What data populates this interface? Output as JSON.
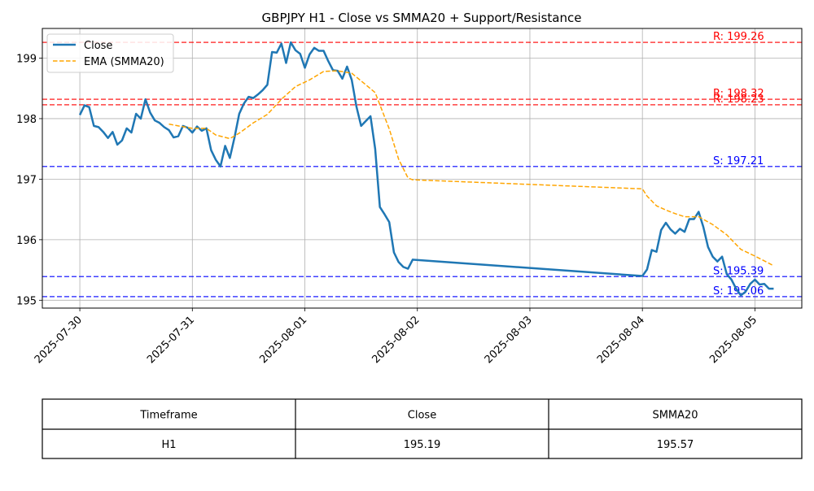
{
  "chart_data": {
    "type": "line",
    "title": "GBPJPY H1 - Close vs SMMA20 + Support/Resistance",
    "xlabel": "",
    "ylabel": "",
    "x_ticks": [
      "2025-07-30",
      "2025-07-31",
      "2025-08-01",
      "2025-08-02",
      "2025-08-03",
      "2025-08-04",
      "2025-08-05"
    ],
    "y_ticks": [
      "195",
      "196",
      "197",
      "198",
      "199"
    ],
    "ylim": [
      194.87,
      199.49
    ],
    "xlim": [
      "2025-07-29T16:00",
      "2025-08-05T10:00"
    ],
    "grid": true,
    "legend_position": "upper-left",
    "series": [
      {
        "name": "Close",
        "color": "#1f77b4",
        "style": "solid",
        "points": [
          [
            "2025-07-30T00:00",
            198.06
          ],
          [
            "2025-07-30T01:00",
            198.22
          ],
          [
            "2025-07-30T02:00",
            198.19
          ],
          [
            "2025-07-30T03:00",
            197.88
          ],
          [
            "2025-07-30T04:00",
            197.86
          ],
          [
            "2025-07-30T05:00",
            197.78
          ],
          [
            "2025-07-30T06:00",
            197.68
          ],
          [
            "2025-07-30T07:00",
            197.78
          ],
          [
            "2025-07-30T08:00",
            197.57
          ],
          [
            "2025-07-30T09:00",
            197.64
          ],
          [
            "2025-07-30T10:00",
            197.84
          ],
          [
            "2025-07-30T11:00",
            197.77
          ],
          [
            "2025-07-30T12:00",
            198.08
          ],
          [
            "2025-07-30T13:00",
            198.0
          ],
          [
            "2025-07-30T14:00",
            198.32
          ],
          [
            "2025-07-30T15:00",
            198.1
          ],
          [
            "2025-07-30T16:00",
            197.97
          ],
          [
            "2025-07-30T17:00",
            197.93
          ],
          [
            "2025-07-30T18:00",
            197.86
          ],
          [
            "2025-07-30T19:00",
            197.81
          ],
          [
            "2025-07-30T20:00",
            197.69
          ],
          [
            "2025-07-30T21:00",
            197.71
          ],
          [
            "2025-07-30T22:00",
            197.88
          ],
          [
            "2025-07-30T23:00",
            197.85
          ],
          [
            "2025-07-31T00:00",
            197.77
          ],
          [
            "2025-07-31T01:00",
            197.87
          ],
          [
            "2025-07-31T02:00",
            197.8
          ],
          [
            "2025-07-31T03:00",
            197.84
          ],
          [
            "2025-07-31T04:00",
            197.48
          ],
          [
            "2025-07-31T05:00",
            197.32
          ],
          [
            "2025-07-31T06:00",
            197.21
          ],
          [
            "2025-07-31T07:00",
            197.55
          ],
          [
            "2025-07-31T08:00",
            197.35
          ],
          [
            "2025-07-31T09:00",
            197.69
          ],
          [
            "2025-07-31T10:00",
            198.08
          ],
          [
            "2025-07-31T11:00",
            198.25
          ],
          [
            "2025-07-31T12:00",
            198.36
          ],
          [
            "2025-07-31T13:00",
            198.34
          ],
          [
            "2025-07-31T14:00",
            198.4
          ],
          [
            "2025-07-31T15:00",
            198.47
          ],
          [
            "2025-07-31T16:00",
            198.56
          ],
          [
            "2025-07-31T17:00",
            199.1
          ],
          [
            "2025-07-31T18:00",
            199.09
          ],
          [
            "2025-07-31T19:00",
            199.24
          ],
          [
            "2025-07-31T20:00",
            198.92
          ],
          [
            "2025-07-31T21:00",
            199.26
          ],
          [
            "2025-07-31T22:00",
            199.13
          ],
          [
            "2025-07-31T23:00",
            199.07
          ],
          [
            "2025-08-01T00:00",
            198.84
          ],
          [
            "2025-08-01T01:00",
            199.06
          ],
          [
            "2025-08-01T02:00",
            199.17
          ],
          [
            "2025-08-01T03:00",
            199.12
          ],
          [
            "2025-08-01T04:00",
            199.12
          ],
          [
            "2025-08-01T05:00",
            198.95
          ],
          [
            "2025-08-01T06:00",
            198.8
          ],
          [
            "2025-08-01T07:00",
            198.79
          ],
          [
            "2025-08-01T08:00",
            198.66
          ],
          [
            "2025-08-01T09:00",
            198.86
          ],
          [
            "2025-08-01T10:00",
            198.64
          ],
          [
            "2025-08-01T11:00",
            198.2
          ],
          [
            "2025-08-01T12:00",
            197.88
          ],
          [
            "2025-08-01T13:00",
            197.96
          ],
          [
            "2025-08-01T14:00",
            198.04
          ],
          [
            "2025-08-01T15:00",
            197.5
          ],
          [
            "2025-08-01T16:00",
            196.54
          ],
          [
            "2025-08-01T17:00",
            196.42
          ],
          [
            "2025-08-01T18:00",
            196.29
          ],
          [
            "2025-08-01T19:00",
            195.79
          ],
          [
            "2025-08-01T20:00",
            195.63
          ],
          [
            "2025-08-01T21:00",
            195.55
          ],
          [
            "2025-08-01T22:00",
            195.52
          ],
          [
            "2025-08-01T23:00",
            195.67
          ],
          [
            "2025-08-04T00:00",
            195.4
          ],
          [
            "2025-08-04T01:00",
            195.51
          ],
          [
            "2025-08-04T02:00",
            195.83
          ],
          [
            "2025-08-04T03:00",
            195.8
          ],
          [
            "2025-08-04T04:00",
            196.16
          ],
          [
            "2025-08-04T05:00",
            196.28
          ],
          [
            "2025-08-04T06:00",
            196.17
          ],
          [
            "2025-08-04T07:00",
            196.1
          ],
          [
            "2025-08-04T08:00",
            196.18
          ],
          [
            "2025-08-04T09:00",
            196.13
          ],
          [
            "2025-08-04T10:00",
            196.34
          ],
          [
            "2025-08-04T11:00",
            196.34
          ],
          [
            "2025-08-04T12:00",
            196.46
          ],
          [
            "2025-08-04T13:00",
            196.21
          ],
          [
            "2025-08-04T14:00",
            195.88
          ],
          [
            "2025-08-04T15:00",
            195.72
          ],
          [
            "2025-08-04T16:00",
            195.64
          ],
          [
            "2025-08-04T17:00",
            195.72
          ],
          [
            "2025-08-04T18:00",
            195.43
          ],
          [
            "2025-08-04T19:00",
            195.34
          ],
          [
            "2025-08-04T20:00",
            195.19
          ],
          [
            "2025-08-04T21:00",
            195.08
          ],
          [
            "2025-08-04T22:00",
            195.14
          ],
          [
            "2025-08-04T23:00",
            195.27
          ],
          [
            "2025-08-05T00:00",
            195.34
          ],
          [
            "2025-08-05T01:00",
            195.26
          ],
          [
            "2025-08-05T02:00",
            195.27
          ],
          [
            "2025-08-05T03:00",
            195.19
          ],
          [
            "2025-08-05T04:00",
            195.19
          ]
        ]
      },
      {
        "name": "EMA (SMMA20)",
        "color": "#ffa500",
        "style": "dashed",
        "points": [
          [
            "2025-07-30T19:00",
            197.91
          ],
          [
            "2025-07-30T21:00",
            197.88
          ],
          [
            "2025-07-31T00:00",
            197.84
          ],
          [
            "2025-07-31T03:00",
            197.84
          ],
          [
            "2025-07-31T05:00",
            197.73
          ],
          [
            "2025-07-31T08:00",
            197.67
          ],
          [
            "2025-07-31T10:00",
            197.76
          ],
          [
            "2025-07-31T13:00",
            197.93
          ],
          [
            "2025-07-31T16:00",
            198.07
          ],
          [
            "2025-07-31T19:00",
            198.32
          ],
          [
            "2025-07-31T22:00",
            198.53
          ],
          [
            "2025-08-01T01:00",
            198.64
          ],
          [
            "2025-08-01T04:00",
            198.78
          ],
          [
            "2025-08-01T07:00",
            198.79
          ],
          [
            "2025-08-01T10:00",
            198.75
          ],
          [
            "2025-08-01T13:00",
            198.56
          ],
          [
            "2025-08-01T15:00",
            198.43
          ],
          [
            "2025-08-01T18:00",
            197.83
          ],
          [
            "2025-08-01T20:00",
            197.33
          ],
          [
            "2025-08-01T22:00",
            197.02
          ],
          [
            "2025-08-01T23:00",
            196.99
          ],
          [
            "2025-08-04T00:00",
            196.84
          ],
          [
            "2025-08-04T01:00",
            196.72
          ],
          [
            "2025-08-04T03:00",
            196.56
          ],
          [
            "2025-08-04T05:00",
            196.49
          ],
          [
            "2025-08-04T07:00",
            196.43
          ],
          [
            "2025-08-04T09:00",
            196.38
          ],
          [
            "2025-08-04T12:00",
            196.38
          ],
          [
            "2025-08-04T15:00",
            196.25
          ],
          [
            "2025-08-04T18:00",
            196.08
          ],
          [
            "2025-08-04T21:00",
            195.84
          ],
          [
            "2025-08-05T00:00",
            195.73
          ],
          [
            "2025-08-05T04:00",
            195.57
          ]
        ]
      }
    ],
    "horizontal_lines": [
      {
        "kind": "resistance",
        "value": 199.26,
        "label": "R: 199.26",
        "color": "#ff0000"
      },
      {
        "kind": "resistance",
        "value": 198.32,
        "label": "R: 198.32",
        "color": "#ff0000"
      },
      {
        "kind": "resistance",
        "value": 198.23,
        "label": "R: 198.23",
        "color": "#ff0000"
      },
      {
        "kind": "support",
        "value": 197.21,
        "label": "S: 197.21",
        "color": "#0000ff"
      },
      {
        "kind": "support",
        "value": 195.39,
        "label": "S: 195.39",
        "color": "#0000ff"
      },
      {
        "kind": "support",
        "value": 195.06,
        "label": "S: 195.06",
        "color": "#0000ff"
      }
    ],
    "table": {
      "headers": [
        "Timeframe",
        "Close",
        "SMMA20"
      ],
      "rows": [
        [
          "H1",
          "195.19",
          "195.57"
        ]
      ]
    }
  }
}
